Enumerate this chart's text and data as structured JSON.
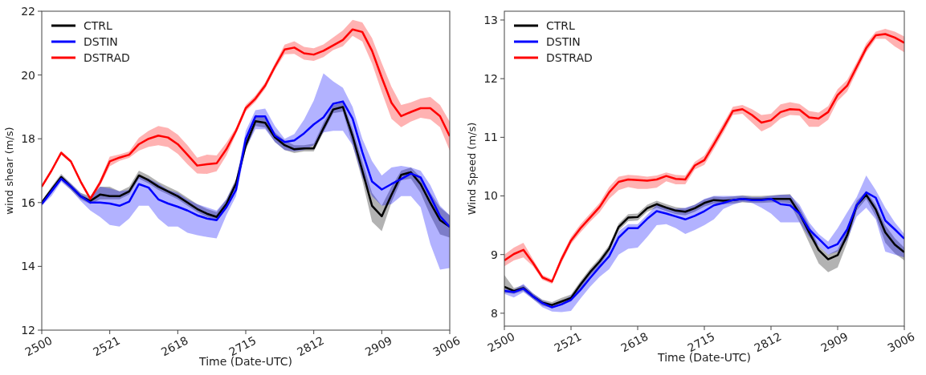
{
  "chart_data": [
    {
      "type": "line",
      "ylabel": "wind shear (m/s)",
      "xlabel": "Time (Date-UTC)",
      "categories": [
        "2500",
        null,
        null,
        null,
        null,
        null,
        null,
        "2521",
        null,
        null,
        null,
        null,
        null,
        null,
        "2618",
        null,
        null,
        null,
        null,
        null,
        null,
        "2715",
        null,
        null,
        null,
        null,
        null,
        null,
        "2812",
        null,
        null,
        null,
        null,
        null,
        null,
        "2909",
        null,
        null,
        null,
        null,
        null,
        null,
        "3006"
      ],
      "ylim": [
        12,
        22
      ],
      "yticks": [
        12,
        14,
        16,
        18,
        20,
        22
      ],
      "legend": "top left",
      "line_style": "solid",
      "series": [
        {
          "name": "CTRL",
          "color": "#000000",
          "values": [
            16.0,
            16.4,
            16.8,
            16.5,
            16.2,
            16.05,
            16.25,
            16.2,
            16.2,
            16.35,
            16.85,
            16.7,
            16.5,
            16.35,
            16.2,
            16.0,
            15.8,
            15.65,
            15.55,
            15.95,
            16.6,
            17.8,
            18.55,
            18.5,
            18.05,
            17.8,
            17.67,
            17.7,
            17.7,
            18.33,
            18.92,
            19.0,
            18.08,
            17.0,
            15.9,
            15.57,
            16.24,
            16.87,
            16.95,
            16.58,
            15.99,
            15.45,
            15.24
          ],
          "lower": [
            15.95,
            16.3,
            16.7,
            16.4,
            16.1,
            15.95,
            16.1,
            16.1,
            16.1,
            16.25,
            16.75,
            16.6,
            16.4,
            16.25,
            16.1,
            15.9,
            15.7,
            15.55,
            15.45,
            15.85,
            16.5,
            17.65,
            18.4,
            18.35,
            17.9,
            17.65,
            17.55,
            17.6,
            17.6,
            18.2,
            18.8,
            18.85,
            17.8,
            16.7,
            15.4,
            15.1,
            16.0,
            16.7,
            16.75,
            16.3,
            15.6,
            15.0,
            14.9
          ],
          "upper": [
            16.05,
            16.5,
            16.9,
            16.6,
            16.3,
            16.2,
            16.5,
            16.5,
            16.35,
            16.5,
            17.0,
            16.85,
            16.65,
            16.5,
            16.35,
            16.15,
            15.95,
            15.8,
            15.7,
            16.1,
            16.75,
            18.0,
            18.75,
            18.65,
            18.2,
            17.95,
            17.8,
            17.8,
            17.85,
            18.5,
            19.05,
            19.15,
            18.3,
            17.3,
            16.3,
            15.9,
            16.5,
            17.0,
            17.1,
            16.8,
            16.3,
            15.85,
            15.6
          ]
        },
        {
          "name": "DSTIN",
          "color": "#0000ff",
          "values": [
            15.95,
            16.35,
            16.75,
            16.5,
            16.2,
            16.0,
            16.0,
            15.97,
            15.9,
            16.03,
            16.58,
            16.47,
            16.1,
            15.97,
            15.87,
            15.75,
            15.6,
            15.5,
            15.45,
            15.85,
            16.4,
            18.0,
            18.7,
            18.7,
            18.1,
            17.9,
            17.95,
            18.17,
            18.45,
            18.67,
            19.1,
            19.17,
            18.63,
            17.58,
            16.66,
            16.41,
            16.58,
            16.74,
            16.91,
            16.79,
            16.2,
            15.57,
            15.24
          ],
          "lower": [
            15.9,
            16.2,
            16.65,
            16.4,
            16.05,
            15.75,
            15.55,
            15.3,
            15.25,
            15.5,
            15.9,
            15.9,
            15.5,
            15.25,
            15.25,
            15.05,
            14.98,
            14.92,
            14.88,
            15.6,
            16.2,
            17.7,
            18.3,
            18.3,
            17.9,
            17.65,
            17.6,
            17.65,
            17.8,
            18.2,
            18.25,
            18.25,
            17.8,
            16.8,
            16.2,
            15.9,
            15.95,
            16.2,
            16.2,
            15.85,
            14.7,
            13.9,
            13.95
          ],
          "upper": [
            16.05,
            16.45,
            16.85,
            16.6,
            16.3,
            16.1,
            16.5,
            16.45,
            16.35,
            16.4,
            16.85,
            16.75,
            16.6,
            16.4,
            16.3,
            16.1,
            15.95,
            15.85,
            15.75,
            16.1,
            16.7,
            18.25,
            18.9,
            18.95,
            18.4,
            18.0,
            18.15,
            18.6,
            19.2,
            20.05,
            19.8,
            19.6,
            19.0,
            18.0,
            17.3,
            16.85,
            17.1,
            17.15,
            17.1,
            17.0,
            16.55,
            15.9,
            15.6
          ]
        },
        {
          "name": "DSTRAD",
          "color": "#ff0000",
          "values": [
            16.5,
            17.0,
            17.56,
            17.29,
            16.66,
            16.12,
            16.62,
            17.29,
            17.41,
            17.5,
            17.83,
            18.0,
            18.1,
            18.04,
            17.83,
            17.5,
            17.16,
            17.2,
            17.23,
            17.67,
            18.25,
            18.96,
            19.26,
            19.67,
            20.26,
            20.8,
            20.86,
            20.68,
            20.64,
            20.76,
            20.93,
            21.1,
            21.43,
            21.35,
            20.76,
            19.92,
            19.13,
            18.71,
            18.84,
            18.96,
            18.96,
            18.71,
            18.08
          ],
          "lower": [
            16.45,
            16.95,
            17.5,
            17.24,
            16.6,
            16.07,
            16.52,
            17.14,
            17.31,
            17.4,
            17.63,
            17.75,
            17.8,
            17.74,
            17.53,
            17.2,
            16.91,
            16.9,
            16.98,
            17.47,
            18.15,
            18.86,
            19.16,
            19.57,
            20.16,
            20.65,
            20.66,
            20.48,
            20.44,
            20.56,
            20.78,
            20.9,
            21.23,
            21.05,
            20.36,
            19.47,
            18.63,
            18.36,
            18.54,
            18.66,
            18.61,
            18.36,
            17.63
          ],
          "upper": [
            16.55,
            17.05,
            17.62,
            17.34,
            16.72,
            16.17,
            16.72,
            17.44,
            17.51,
            17.6,
            18.03,
            18.25,
            18.4,
            18.34,
            18.13,
            17.8,
            17.41,
            17.5,
            17.48,
            17.87,
            18.35,
            19.06,
            19.36,
            19.77,
            20.36,
            20.95,
            21.06,
            20.88,
            20.84,
            20.96,
            21.18,
            21.4,
            21.73,
            21.65,
            21.16,
            20.37,
            19.63,
            19.06,
            19.14,
            19.26,
            19.31,
            19.06,
            18.53
          ]
        }
      ]
    },
    {
      "type": "line",
      "ylabel": "Wind Speed (m/s)",
      "xlabel": "Time (Date-UTC)",
      "categories": [
        "2500",
        null,
        null,
        null,
        null,
        null,
        null,
        "2521",
        null,
        null,
        null,
        null,
        null,
        null,
        "2618",
        null,
        null,
        null,
        null,
        null,
        null,
        "2715",
        null,
        null,
        null,
        null,
        null,
        null,
        "2812",
        null,
        null,
        null,
        null,
        null,
        null,
        "2909",
        null,
        null,
        null,
        null,
        null,
        null,
        "3006"
      ],
      "ylim": [
        7.78,
        13.15
      ],
      "yticks": [
        8,
        9,
        10,
        11,
        12,
        13
      ],
      "legend": "top left",
      "line_style": "solid",
      "series": [
        {
          "name": "CTRL",
          "color": "#000000",
          "values": [
            8.45,
            8.38,
            8.43,
            8.29,
            8.18,
            8.14,
            8.2,
            8.26,
            8.49,
            8.7,
            8.88,
            9.1,
            9.47,
            9.63,
            9.64,
            9.79,
            9.86,
            9.8,
            9.75,
            9.73,
            9.79,
            9.88,
            9.93,
            9.92,
            9.93,
            9.95,
            9.94,
            9.94,
            9.95,
            9.95,
            9.95,
            9.7,
            9.38,
            9.08,
            8.92,
            8.99,
            9.33,
            9.84,
            10.02,
            9.77,
            9.38,
            9.17,
            9.04
          ],
          "lower": [
            8.35,
            8.33,
            8.38,
            8.24,
            8.13,
            8.09,
            8.14,
            8.2,
            8.43,
            8.64,
            8.82,
            9.04,
            9.41,
            9.57,
            9.58,
            9.73,
            9.8,
            9.74,
            9.69,
            9.67,
            9.73,
            9.82,
            9.87,
            9.86,
            9.87,
            9.89,
            9.88,
            9.88,
            9.89,
            9.89,
            9.87,
            9.55,
            9.2,
            8.85,
            8.7,
            8.78,
            9.2,
            9.75,
            9.95,
            9.65,
            9.2,
            9.02,
            8.9
          ],
          "upper": [
            8.65,
            8.43,
            8.48,
            8.34,
            8.23,
            8.19,
            8.26,
            8.32,
            8.55,
            8.76,
            8.94,
            9.16,
            9.53,
            9.69,
            9.7,
            9.85,
            9.92,
            9.86,
            9.81,
            9.79,
            9.85,
            9.94,
            9.99,
            9.98,
            9.99,
            10.01,
            10.0,
            10.0,
            10.01,
            10.02,
            10.03,
            9.8,
            9.5,
            9.15,
            9.0,
            9.08,
            9.45,
            9.92,
            10.08,
            9.85,
            9.5,
            9.28,
            9.12
          ]
        },
        {
          "name": "DSTIN",
          "color": "#0000ff",
          "values": [
            8.38,
            8.36,
            8.42,
            8.29,
            8.17,
            8.1,
            8.15,
            8.23,
            8.4,
            8.6,
            8.79,
            8.97,
            9.29,
            9.45,
            9.45,
            9.61,
            9.74,
            9.7,
            9.65,
            9.6,
            9.66,
            9.74,
            9.84,
            9.88,
            9.93,
            9.95,
            9.93,
            9.93,
            9.95,
            9.86,
            9.84,
            9.7,
            9.43,
            9.27,
            9.11,
            9.18,
            9.43,
            9.84,
            10.06,
            9.97,
            9.58,
            9.43,
            9.27
          ],
          "lower": [
            8.33,
            8.27,
            8.36,
            8.24,
            8.1,
            8.03,
            8.02,
            8.04,
            8.25,
            8.45,
            8.62,
            8.75,
            9.0,
            9.1,
            9.12,
            9.3,
            9.5,
            9.52,
            9.45,
            9.35,
            9.42,
            9.5,
            9.6,
            9.78,
            9.85,
            9.9,
            9.88,
            9.8,
            9.7,
            9.55,
            9.55,
            9.55,
            9.3,
            9.15,
            9.0,
            9.05,
            9.25,
            9.65,
            9.8,
            9.6,
            9.05,
            9.0,
            8.95
          ],
          "upper": [
            8.42,
            8.4,
            8.5,
            8.34,
            8.22,
            8.15,
            8.2,
            8.3,
            8.48,
            8.68,
            8.88,
            9.05,
            9.4,
            9.52,
            9.52,
            9.68,
            9.85,
            9.82,
            9.78,
            9.8,
            9.85,
            9.95,
            10.0,
            10.0,
            10.0,
            10.0,
            9.98,
            9.98,
            10.0,
            10.02,
            10.02,
            9.85,
            9.55,
            9.35,
            9.22,
            9.45,
            9.72,
            9.98,
            10.35,
            10.1,
            9.8,
            9.55,
            9.35
          ]
        },
        {
          "name": "DSTRAD",
          "color": "#ff0000",
          "values": [
            8.9,
            9.01,
            9.08,
            8.86,
            8.61,
            8.54,
            8.92,
            9.24,
            9.45,
            9.63,
            9.81,
            10.06,
            10.24,
            10.28,
            10.27,
            10.26,
            10.28,
            10.34,
            10.29,
            10.28,
            10.52,
            10.61,
            10.88,
            11.16,
            11.45,
            11.48,
            11.38,
            11.25,
            11.29,
            11.43,
            11.48,
            11.47,
            11.34,
            11.32,
            11.43,
            11.72,
            11.88,
            12.2,
            12.52,
            12.74,
            12.76,
            12.7,
            12.61
          ],
          "lower": [
            8.8,
            8.9,
            8.95,
            8.8,
            8.57,
            8.5,
            8.86,
            9.18,
            9.38,
            9.56,
            9.72,
            9.95,
            10.1,
            10.15,
            10.12,
            10.12,
            10.14,
            10.25,
            10.2,
            10.2,
            10.45,
            10.53,
            10.8,
            11.08,
            11.38,
            11.4,
            11.25,
            11.1,
            11.18,
            11.32,
            11.38,
            11.37,
            11.18,
            11.18,
            11.3,
            11.62,
            11.78,
            12.12,
            12.45,
            12.68,
            12.68,
            12.55,
            12.45
          ],
          "upper": [
            9.0,
            9.12,
            9.2,
            8.92,
            8.65,
            8.58,
            8.98,
            9.3,
            9.52,
            9.7,
            9.88,
            10.15,
            10.33,
            10.36,
            10.35,
            10.33,
            10.35,
            10.4,
            10.36,
            10.35,
            10.58,
            10.69,
            10.96,
            11.24,
            11.52,
            11.55,
            11.48,
            11.38,
            11.4,
            11.56,
            11.6,
            11.57,
            11.45,
            11.42,
            11.53,
            11.82,
            11.98,
            12.28,
            12.6,
            12.8,
            12.85,
            12.8,
            12.72
          ]
        }
      ]
    }
  ]
}
